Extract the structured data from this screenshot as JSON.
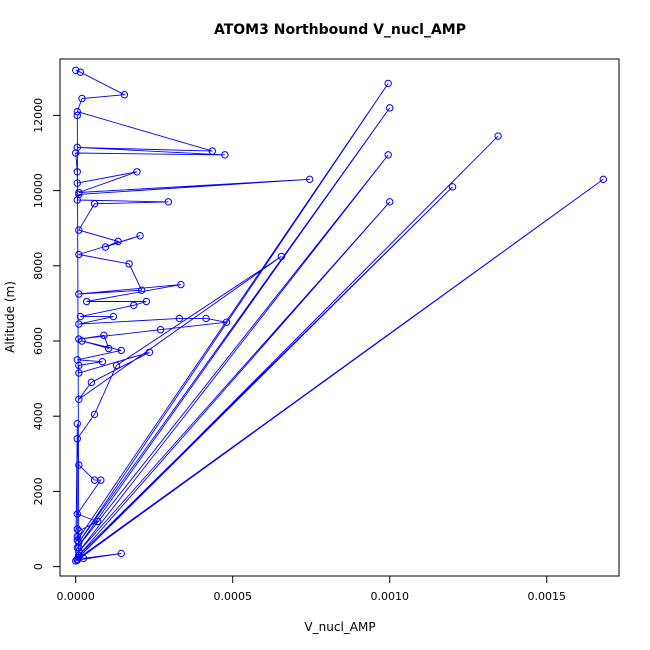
{
  "chart_data": {
    "type": "line",
    "title": "ATOM3 Northbound V_nucl_AMP",
    "xlabel": "V_nucl_AMP",
    "ylabel": "Altitude (m)",
    "xlim": [
      -5e-05,
      0.00173
    ],
    "ylim": [
      -250,
      13500
    ],
    "xticks": [
      "0.0000",
      "0.0005",
      "0.0010",
      "0.0015"
    ],
    "yticks": [
      "0",
      "2000",
      "4000",
      "6000",
      "8000",
      "10000",
      "12000"
    ],
    "line_color": "#0000ff",
    "marker": "open-circle",
    "grid": false,
    "series": [
      {
        "x": [
          0,
          1.5e-05,
          0.000155,
          2e-05,
          5e-06,
          0.000435,
          5e-06,
          0.000475,
          0,
          5e-06,
          5e-06,
          0.000195,
          1e-05,
          0.000745,
          1e-05,
          5e-06,
          0.000295,
          6e-05,
          1e-05,
          0.000135,
          9.5e-05,
          0.000205,
          1e-05,
          0.00017,
          0.00021,
          1e-05,
          0.000335,
          3.5e-05,
          0.000225,
          0.000185,
          1.5e-05,
          0.00012,
          1e-05,
          0.00033,
          0.000415,
          0.00048,
          0.00027,
          1e-05,
          9e-05,
          0.000105,
          2e-05,
          0.000145,
          5e-06,
          8.5e-05,
          1e-05,
          1e-05,
          0.000235,
          5e-05,
          1e-05,
          0.000655,
          0.00013,
          6e-05,
          5e-06,
          1e-05,
          6e-05,
          8e-05,
          5e-06,
          7e-05,
          1e-05,
          5e-06,
          5e-06,
          0.000995,
          1e-05,
          0.001,
          5e-06,
          0.000995,
          1e-05,
          0.001,
          1e-05,
          0.0012,
          1e-05,
          0.001345,
          5e-06,
          0.00168,
          5e-06,
          0.000145,
          2.5e-05,
          1e-05,
          0,
          5e-06,
          5e-06,
          1e-05,
          1e-05,
          5e-06
        ],
        "y": [
          13200,
          13150,
          12550,
          12450,
          12100,
          11050,
          11150,
          10950,
          11000,
          10500,
          10200,
          10500,
          9950,
          10300,
          9900,
          9750,
          9700,
          9650,
          8950,
          8650,
          8500,
          8800,
          8300,
          8050,
          7350,
          7250,
          7500,
          7050,
          7050,
          6950,
          6650,
          6650,
          6450,
          6600,
          6600,
          6500,
          6300,
          6050,
          6150,
          5800,
          6000,
          5750,
          5500,
          5450,
          5350,
          5150,
          5700,
          4900,
          4450,
          8250,
          5350,
          4050,
          3400,
          2700,
          2300,
          2300,
          1400,
          1200,
          950,
          800,
          700,
          12850,
          650,
          12200,
          500,
          10950,
          400,
          9700,
          300,
          10100,
          250,
          11450,
          200,
          10300,
          170,
          350,
          220,
          300,
          150,
          3800,
          1000,
          500,
          250,
          12000
        ]
      }
    ]
  }
}
